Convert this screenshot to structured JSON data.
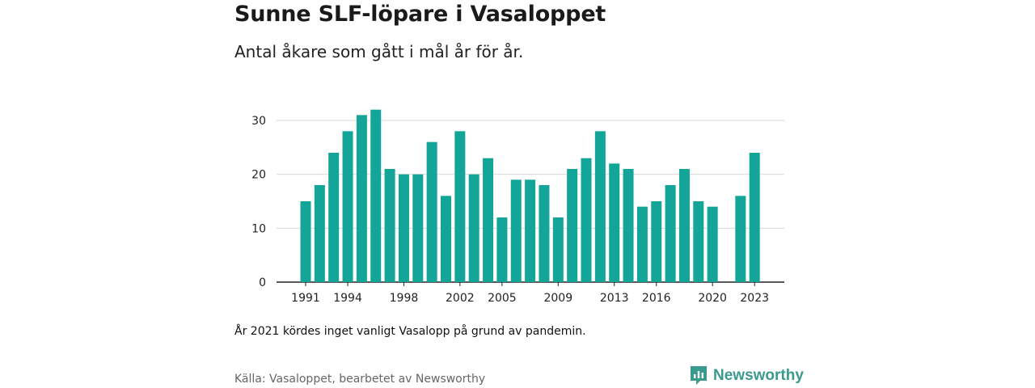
{
  "header": {
    "title": "Sunne SLF-löpare i Vasaloppet",
    "subtitle": "Antal åkare som gått i mål år för år."
  },
  "footer": {
    "note": "År 2021 kördes inget vanligt Vasalopp på grund av pandemin.",
    "source": "Källa: Vasaloppet, bearbetet av Newsworthy",
    "brand": "Newsworthy"
  },
  "colors": {
    "bar": "#12a598",
    "grid": "#d9d9d9",
    "axis": "#222222",
    "brand": "#3a9a8e"
  },
  "chart_data": {
    "type": "bar",
    "title": "Sunne SLF-löpare i Vasaloppet",
    "subtitle": "Antal åkare som gått i mål år för år.",
    "x": [
      1991,
      1992,
      1993,
      1994,
      1995,
      1996,
      1997,
      1998,
      1999,
      2000,
      2001,
      2002,
      2003,
      2004,
      2005,
      2006,
      2007,
      2008,
      2009,
      2010,
      2011,
      2012,
      2013,
      2014,
      2015,
      2016,
      2017,
      2018,
      2019,
      2020,
      2021,
      2022,
      2023
    ],
    "values": [
      15,
      18,
      24,
      28,
      31,
      32,
      21,
      20,
      20,
      26,
      16,
      28,
      20,
      23,
      12,
      19,
      19,
      18,
      12,
      21,
      23,
      28,
      22,
      21,
      14,
      15,
      18,
      21,
      15,
      14,
      null,
      16,
      24
    ],
    "x_ticks": [
      1991,
      1994,
      1998,
      2002,
      2005,
      2009,
      2013,
      2016,
      2020,
      2023
    ],
    "y_ticks": [
      0,
      10,
      20,
      30
    ],
    "ylim": [
      0,
      32
    ],
    "grid": true,
    "legend": "none"
  }
}
